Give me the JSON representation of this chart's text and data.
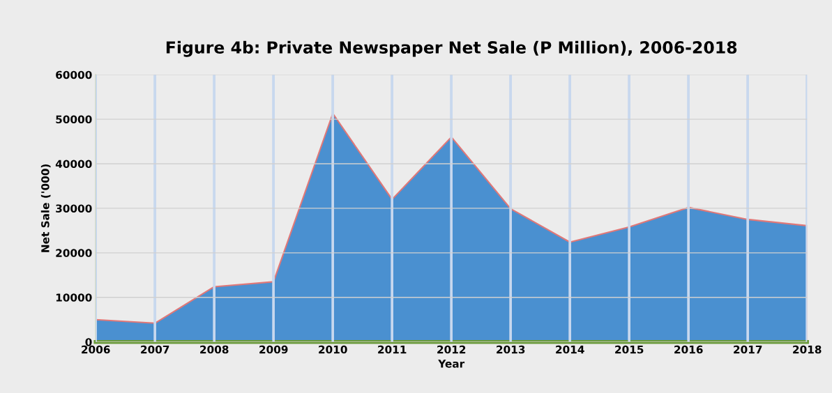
{
  "chart_data": {
    "type": "area",
    "title": "Figure 4b: Private Newspaper Net Sale (P Million), 2006-2018",
    "xlabel": "Year",
    "ylabel": "Net Sale ('000)",
    "categories": [
      "2006",
      "2007",
      "2008",
      "2009",
      "2010",
      "2011",
      "2012",
      "2013",
      "2014",
      "2015",
      "2016",
      "2017",
      "2018"
    ],
    "series": [
      {
        "color": "#4a90d0",
        "values": [
          5000,
          4200,
          12400,
          13500,
          51300,
          32000,
          46000,
          29900,
          22400,
          25800,
          30200,
          27500,
          26100
        ]
      }
    ],
    "ylim": [
      0,
      60000
    ],
    "yticks": [
      0,
      10000,
      20000,
      30000,
      40000,
      50000,
      60000
    ],
    "grid": true,
    "legend": false
  }
}
